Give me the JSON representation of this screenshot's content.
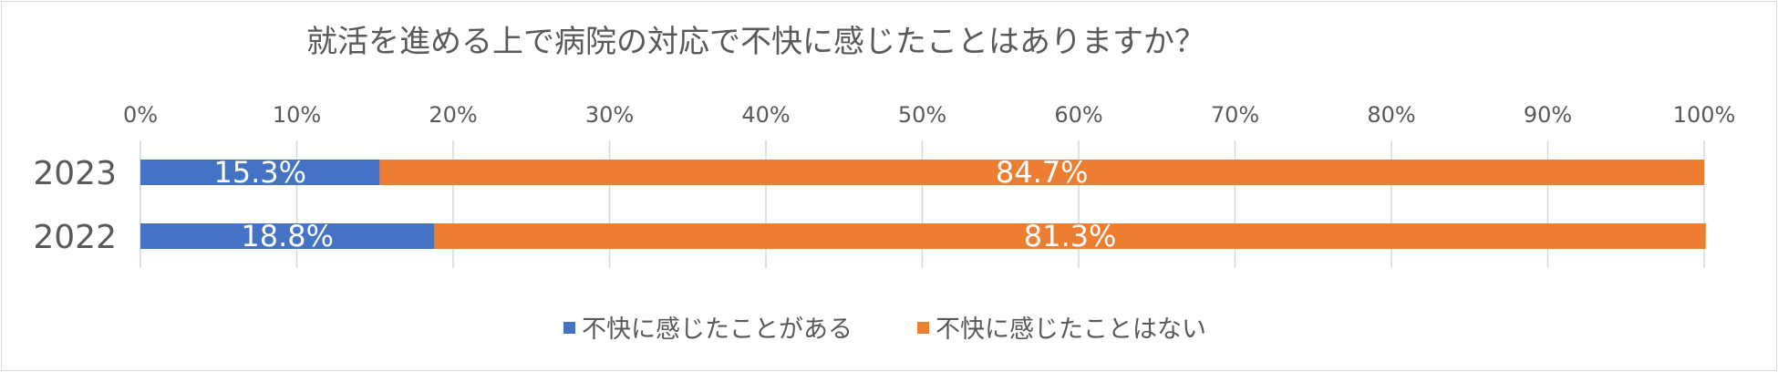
{
  "chart_data": {
    "type": "bar",
    "orientation": "horizontal",
    "stacked": "percent",
    "title": "就活を進める上で病院の対応で不快に感じたことはありますか？",
    "categories": [
      "2023",
      "2022"
    ],
    "series": [
      {
        "name": "不快に感じたことがある",
        "values": [
          15.3,
          18.8
        ],
        "labels": [
          "15.3%",
          "18.8%"
        ],
        "color": "#4472c4"
      },
      {
        "name": "不快に感じたことはない",
        "values": [
          84.7,
          81.3
        ],
        "labels": [
          "84.7%",
          "81.3%"
        ],
        "color": "#ed7d31"
      }
    ],
    "xlim": [
      0,
      100
    ],
    "xticks": [
      "0%",
      "10%",
      "20%",
      "30%",
      "40%",
      "50%",
      "60%",
      "70%",
      "80%",
      "90%",
      "100%"
    ],
    "xaxis_position": "top",
    "grid": true,
    "legend_position": "bottom"
  }
}
